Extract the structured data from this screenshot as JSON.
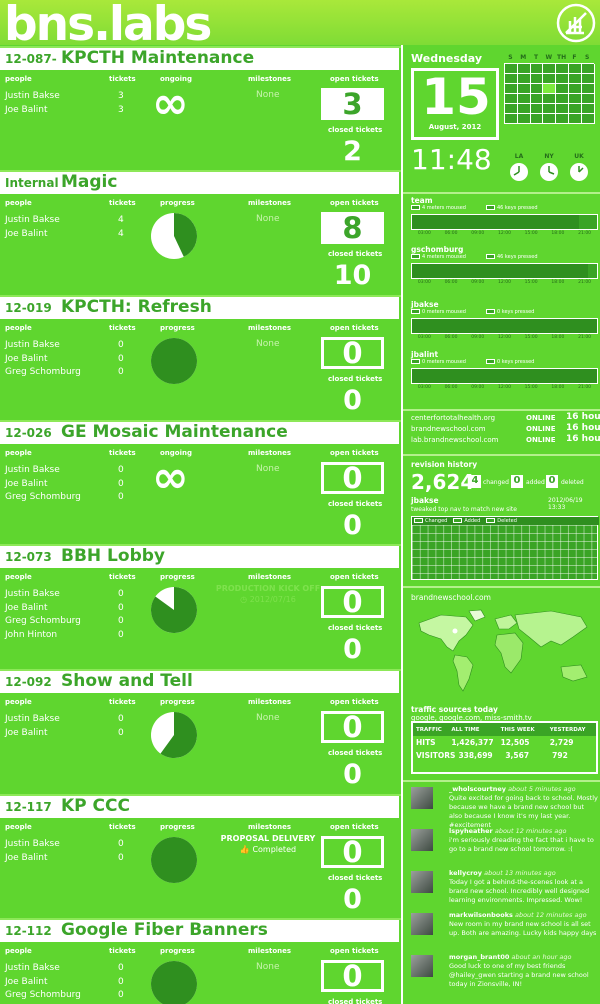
{
  "header": {
    "logo_text": "bns.labs",
    "logo_icon": "leaf-icon"
  },
  "labels": {
    "people": "people",
    "tickets": "tickets",
    "ongoing": "ongoing",
    "progress": "progress",
    "milestones": "milestones",
    "open_tickets": "open tickets",
    "closed_tickets": "closed tickets",
    "none": "None"
  },
  "projects": [
    {
      "id": "12-087-",
      "name": "KPCTH Maintenance",
      "col": "ongoing",
      "ongoing": true,
      "people": [
        "Justin Bakse",
        "Joe Balint"
      ],
      "tickets": [
        "3",
        "3"
      ],
      "milestone": "None",
      "open": "3",
      "closed": "2",
      "progress": null,
      "filled": true
    },
    {
      "id": "Internal",
      "name": "Magic",
      "col": "progress",
      "ongoing": false,
      "people": [
        "Justin Bakse",
        "Joe Balint"
      ],
      "tickets": [
        "4",
        "4"
      ],
      "milestone": "None",
      "open": "8",
      "closed": "10",
      "progress": 0.43,
      "filled": true
    },
    {
      "id": "12-019",
      "name": "KPCTH: Refresh",
      "col": "progress",
      "ongoing": false,
      "people": [
        "Justin Bakse",
        "Joe Balint",
        "Greg Schomburg"
      ],
      "tickets": [
        "0",
        "0",
        "0"
      ],
      "milestone": "None",
      "open": "0",
      "closed": "0",
      "progress": 1.0,
      "filled": false
    },
    {
      "id": "12-026",
      "name": "GE Mosaic Maintenance",
      "col": "ongoing",
      "ongoing": true,
      "people": [
        "Justin Bakse",
        "Joe Balint",
        "Greg Schomburg"
      ],
      "tickets": [
        "0",
        "0",
        "0"
      ],
      "milestone": "None",
      "open": "0",
      "closed": "0",
      "progress": null,
      "filled": false
    },
    {
      "id": "12-073",
      "name": "BBH Lobby",
      "col": "progress",
      "ongoing": false,
      "people": [
        "Justin Bakse",
        "Joe Balint",
        "Greg Schomburg",
        "John Hinton"
      ],
      "tickets": [
        "0",
        "0",
        "0",
        "0"
      ],
      "milestone": "PRODUCTION KICK OFF",
      "milestone_sub": "2012/07/16",
      "milestone_faded": true,
      "open": "0",
      "closed": "0",
      "progress": 0.85,
      "filled": false
    },
    {
      "id": "12-092",
      "name": "Show and Tell",
      "col": "progress",
      "ongoing": false,
      "people": [
        "Justin Bakse",
        "Joe Balint"
      ],
      "tickets": [
        "0",
        "0"
      ],
      "milestone": "None",
      "open": "0",
      "closed": "0",
      "progress": 0.6,
      "filled": false
    },
    {
      "id": "12-117",
      "name": "KP CCC",
      "col": "progress",
      "ongoing": false,
      "people": [
        "Justin Bakse",
        "Joe Balint"
      ],
      "tickets": [
        "0",
        "0"
      ],
      "milestone": "PROPOSAL DELIVERY",
      "milestone_sub": "Completed",
      "milestone_faded": false,
      "open": "0",
      "closed": "0",
      "progress": 1.0,
      "filled": false
    },
    {
      "id": "12-112",
      "name": "Google Fiber Banners",
      "col": "progress",
      "ongoing": false,
      "people": [
        "Justin Bakse",
        "Joe Balint",
        "Greg Schomburg"
      ],
      "tickets": [
        "0",
        "0",
        "0"
      ],
      "milestone": "None",
      "open": "0",
      "closed": "",
      "progress": 1.0,
      "filled": false
    }
  ],
  "sidebar": {
    "weekday": "Wednesday",
    "day": "15",
    "month_year": "August, 2012",
    "cal_days": [
      "S",
      "M",
      "T",
      "W",
      "TH",
      "F",
      "S"
    ],
    "time": "11:48",
    "clocks": [
      "LA",
      "NY",
      "UK"
    ],
    "activity": [
      {
        "name": "team",
        "meters": "4 meters moused",
        "keys": "46 keys pressed",
        "fill": 0.9
      },
      {
        "name": "gschomburg",
        "meters": "4 meters moused",
        "keys": "46 keys pressed",
        "fill": 0.95
      },
      {
        "name": "jbakse",
        "meters": "0 meters moused",
        "keys": "0 keys pressed",
        "fill": 1.0
      },
      {
        "name": "jbalint",
        "meters": "0 meters moused",
        "keys": "0 keys pressed",
        "fill": 1.0
      }
    ],
    "scale": [
      "03:00",
      "06:00",
      "09:00",
      "12:00",
      "15:00",
      "18:00",
      "21:00"
    ],
    "hosts": [
      {
        "name": "centerfortotalhealth.org",
        "status": "ONLINE",
        "hours": "16 hours"
      },
      {
        "name": "brandnewschool.com",
        "status": "ONLINE",
        "hours": "16 hours"
      },
      {
        "name": "lab.brandnewschool.com",
        "status": "ONLINE",
        "hours": "16 hours"
      }
    ],
    "revision": {
      "title": "revision history",
      "count": "2,624",
      "changed_n": "4",
      "changed": "changed",
      "added_n": "0",
      "added": "added",
      "deleted_n": "0",
      "deleted": "deleted",
      "user": "jbakse",
      "stamp": "2012/06/19 13:33",
      "message": "tweaked top nav to match new site"
    },
    "heat_legend": [
      "Changed",
      "Added",
      "Deleted"
    ],
    "site": "brandnewschool.com",
    "traffic": {
      "title": "traffic sources today",
      "sources": "google, google.com, miss-smith.tv",
      "head": [
        "TRAFFIC",
        "ALL TIME",
        "THIS WEEK",
        "YESTERDAY"
      ],
      "hits": [
        "HITS",
        "1,426,377",
        "12,505",
        "2,729"
      ],
      "visitors": [
        "VISITORS",
        "338,699",
        "3,567",
        "792"
      ]
    },
    "tweets": [
      {
        "user": "_wholscourtney",
        "time": "about 5 minutes ago",
        "text": "Quite excited for going back to school. Mostly because we have a brand new school but also because I know it's my last year. #excitement"
      },
      {
        "user": "lspyheather",
        "time": "about 12 minutes ago",
        "text": "i'm seriously dreading the fact that i have to go to a brand new school tomorrow. :("
      },
      {
        "user": "kellycroy",
        "time": "about 13 minutes ago",
        "text": "Today I got a behind-the-scenes look at a brand new school. Incredibly well designed learning environments. Impressed. Wow!"
      },
      {
        "user": "markwilsonbooks",
        "time": "about 12 minutes ago",
        "text": "New room in my brand new school is all set up. Both are amazing. Lucky kids happy days"
      },
      {
        "user": "morgan_brant00",
        "time": "about an hour ago",
        "text": "Good luck to one of my best friends @hailey_gwen starting a brand new school today in Zionsville, IN!"
      }
    ]
  }
}
